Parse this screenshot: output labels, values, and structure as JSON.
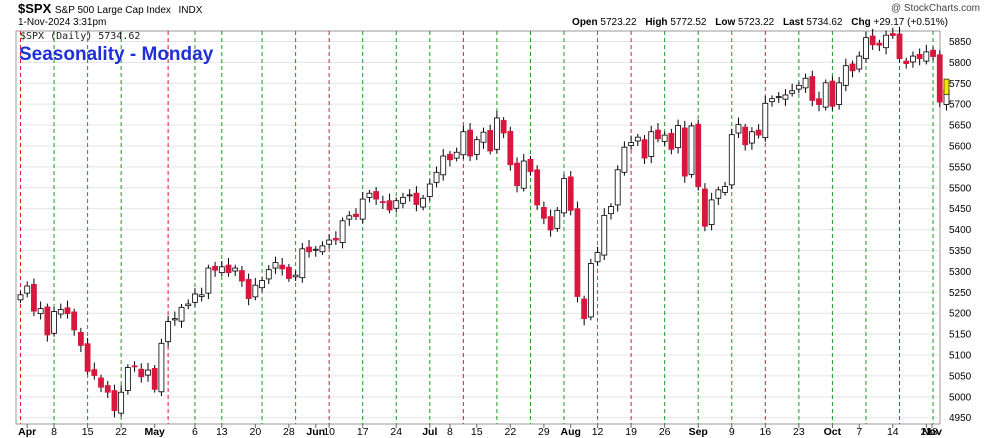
{
  "header": {
    "symbol": "$SPX",
    "name": "S&P 500 Large Cap Index",
    "exchange": "INDX",
    "date": "1-Nov-2024 3:31pm",
    "watermark": "@ StockCharts.com",
    "open_label": "Open",
    "open": "5723.22",
    "high_label": "High",
    "high": "5772.52",
    "low_label": "Low",
    "low": "5723.22",
    "last_label": "Last",
    "last": "5734.62",
    "chg_label": "Chg",
    "chg": "+29.17 (+0.51%)"
  },
  "indicator_label": "$SPX (Daily) 5734.62",
  "chart_data": {
    "type": "candlestick",
    "title": "Seasonality - Monday",
    "ylim": [
      4935,
      5875
    ],
    "y_ticks": [
      4950,
      5000,
      5050,
      5100,
      5150,
      5200,
      5250,
      5300,
      5350,
      5400,
      5450,
      5500,
      5550,
      5600,
      5650,
      5700,
      5750,
      5800,
      5850
    ],
    "x_ticks": [
      "Apr",
      "8",
      "15",
      "22",
      "May",
      "6",
      "13",
      "20",
      "28",
      "Jun",
      "10",
      "17",
      "24",
      "Jul",
      "8",
      "15",
      "22",
      "29",
      "Aug",
      "12",
      "19",
      "26",
      "Sep",
      "9",
      "16",
      "23",
      "Oct",
      "7",
      "14",
      "21",
      "28",
      "Nov"
    ],
    "grid": true,
    "candles_close": [
      5244,
      5265,
      5205,
      5211,
      5148,
      5204,
      5209,
      5199,
      5160,
      5123,
      5061,
      5051,
      5023,
      5011,
      4967,
      5011,
      5070,
      5072,
      5048,
      5064,
      5018,
      5128,
      5180,
      5187,
      5214,
      5222,
      5246,
      5244,
      5308,
      5303,
      5311,
      5297,
      5308,
      5277,
      5235,
      5267,
      5278,
      5304,
      5321,
      5306,
      5283,
      5291,
      5354,
      5347,
      5353,
      5361,
      5375,
      5375,
      5421,
      5433,
      5431,
      5473,
      5487,
      5473,
      5465,
      5447,
      5469,
      5477,
      5483,
      5460,
      5475,
      5509,
      5537,
      5576,
      5567,
      5585,
      5634,
      5576,
      5615,
      5633,
      5588,
      5667,
      5631,
      5555,
      5505,
      5564,
      5539,
      5459,
      5427,
      5399,
      5446,
      5522,
      5446,
      5240,
      5187,
      5319,
      5345,
      5434,
      5455,
      5543,
      5597,
      5608,
      5621,
      5571,
      5634,
      5617,
      5626,
      5592,
      5649,
      5528,
      5648,
      5503,
      5408,
      5471,
      5495,
      5503,
      5627,
      5651,
      5603,
      5634,
      5626,
      5702,
      5713,
      5718,
      5722,
      5732,
      5745,
      5762,
      5709,
      5699,
      5751,
      5695,
      5751,
      5792,
      5780,
      5815,
      5859,
      5842,
      5841,
      5865,
      5864,
      5809,
      5797,
      5815,
      5809,
      5825,
      5814,
      5705,
      5734
    ],
    "mondays": [
      0,
      5,
      10,
      15,
      22,
      26,
      30,
      36,
      41,
      46,
      51,
      56,
      61,
      66,
      71,
      76,
      81,
      86,
      91,
      96,
      101,
      106,
      111,
      116,
      121,
      126,
      131,
      136
    ]
  }
}
